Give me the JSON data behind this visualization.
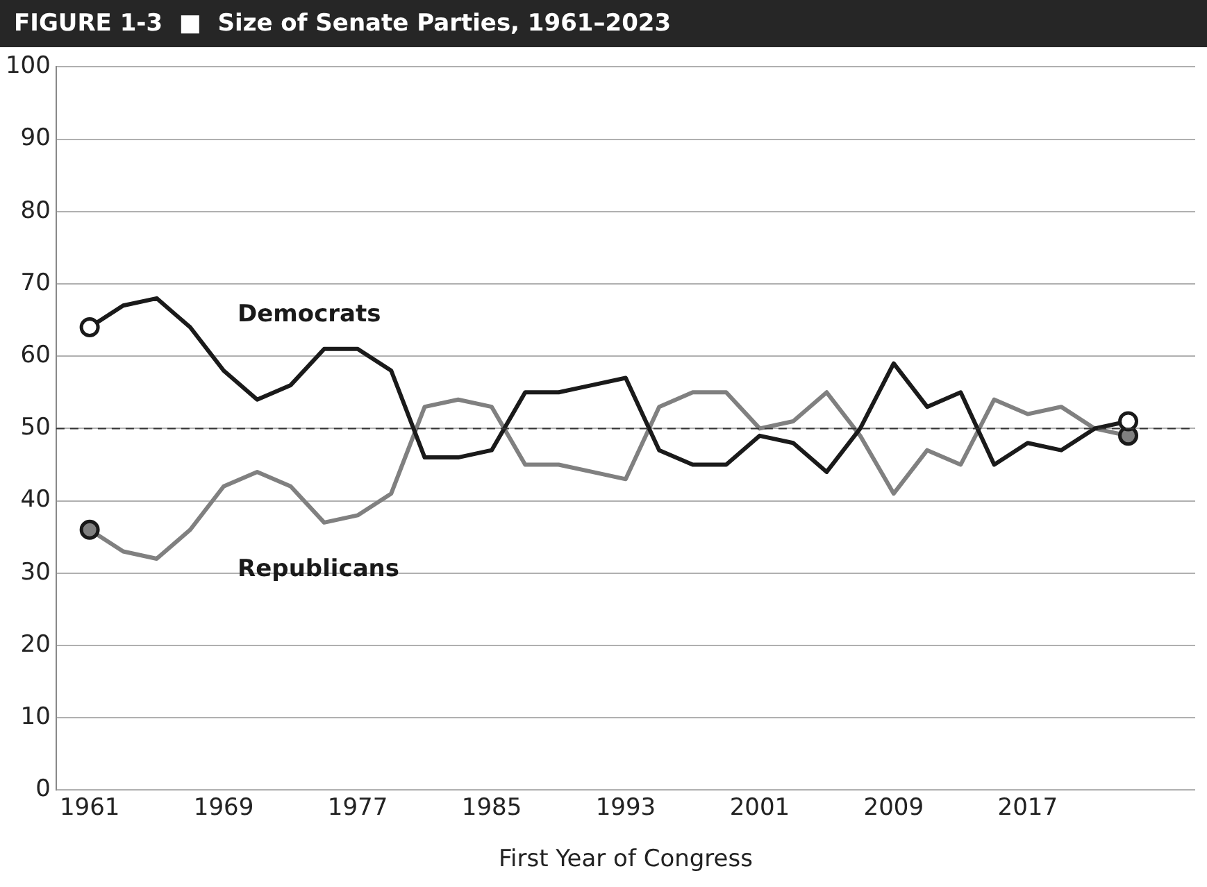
{
  "chart_data": {
    "type": "line",
    "title": "FIGURE 1-3  ■  Size of Senate Parties, 1961–2023",
    "xlabel": "First Year of Congress",
    "x": [
      1961,
      1963,
      1965,
      1967,
      1969,
      1971,
      1973,
      1975,
      1977,
      1979,
      1981,
      1983,
      1985,
      1987,
      1989,
      1991,
      1993,
      1995,
      1997,
      1999,
      2001,
      2003,
      2005,
      2007,
      2009,
      2011,
      2013,
      2015,
      2017,
      2019,
      2021,
      2023
    ],
    "series": [
      {
        "name": "Democrats",
        "color": "#1a1a1a",
        "values": [
          64,
          67,
          68,
          64,
          58,
          54,
          56,
          61,
          61,
          58,
          46,
          46,
          47,
          55,
          55,
          56,
          57,
          47,
          45,
          45,
          49,
          48,
          44,
          50,
          59,
          53,
          55,
          45,
          48,
          47,
          50,
          51
        ]
      },
      {
        "name": "Republicans",
        "color": "#808080",
        "values": [
          36,
          33,
          32,
          36,
          42,
          44,
          42,
          37,
          38,
          41,
          53,
          54,
          53,
          45,
          45,
          44,
          43,
          53,
          55,
          55,
          50,
          51,
          55,
          49,
          41,
          47,
          45,
          54,
          52,
          53,
          50,
          49
        ]
      }
    ],
    "xlim": [
      1959,
      2027
    ],
    "xticks": [
      1961,
      1969,
      1977,
      1985,
      1993,
      2001,
      2009,
      2017
    ],
    "ylim": [
      0,
      100
    ],
    "yticks": [
      0,
      10,
      20,
      30,
      40,
      50,
      60,
      70,
      80,
      90,
      100
    ],
    "grid": "y",
    "legend": false,
    "ref_lines": [
      {
        "axis": "y",
        "value": 50,
        "color": "#333333",
        "line_style": "dashed"
      }
    ]
  }
}
